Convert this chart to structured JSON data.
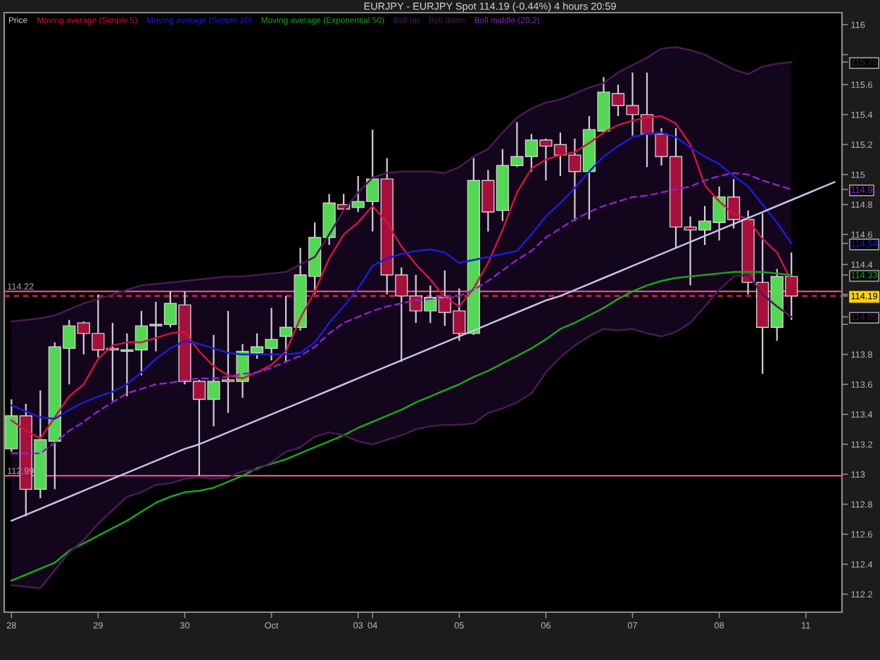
{
  "chart_data": {
    "type": "candlestick",
    "title": "EURJPY - EURJPY Spot 114.19 (-0.44%) 4 hours 20:59",
    "categories": [
      "28",
      null,
      null,
      null,
      null,
      null,
      "29",
      null,
      null,
      null,
      null,
      null,
      "30",
      null,
      null,
      null,
      null,
      null,
      "Oct",
      null,
      null,
      null,
      null,
      null,
      "03",
      "04",
      null,
      null,
      null,
      null,
      null,
      "05",
      null,
      null,
      null,
      null,
      null,
      "06",
      null,
      null,
      null,
      null,
      null,
      "07",
      null,
      null,
      null,
      null,
      null,
      "08",
      null,
      null,
      null,
      null,
      null,
      "11",
      null,
      null
    ],
    "ylim": [
      112.08,
      116.08
    ],
    "yticks": [
      112.2,
      112.4,
      112.6,
      112.8,
      113,
      113.2,
      113.4,
      113.6,
      113.8,
      {
        "value": 114,
        "label": null
      },
      114.05,
      114.19,
      {
        "value": 114.2,
        "label": null
      },
      114.33,
      114.4,
      114.54,
      114.6,
      114.8,
      114.9,
      115,
      115.2,
      115.4,
      115.6,
      115.75,
      {
        "value": 115.8,
        "label": null
      },
      116
    ],
    "legend": "top left",
    "series": [
      {
        "name": "Price",
        "color": "#d0d0d0",
        "ohlc": [
          [
            113.17,
            113.5,
            113.15,
            113.39
          ],
          [
            113.39,
            113.47,
            112.72,
            112.9
          ],
          [
            112.9,
            113.56,
            112.84,
            113.23
          ],
          [
            113.22,
            113.88,
            112.9,
            113.85
          ],
          [
            113.84,
            114.03,
            113.6,
            113.99
          ],
          [
            114.01,
            114.02,
            113.8,
            113.94
          ],
          [
            113.94,
            114.2,
            113.78,
            113.83
          ],
          [
            113.84,
            114.01,
            113.49,
            113.83
          ],
          [
            113.82,
            113.94,
            113.52,
            113.83
          ],
          [
            113.83,
            114.09,
            113.66,
            113.99
          ],
          [
            113.99,
            114.15,
            113.82,
            114.0
          ],
          [
            114.0,
            114.22,
            113.98,
            114.14
          ],
          [
            114.13,
            114.22,
            113.6,
            113.62
          ],
          [
            113.62,
            113.63,
            112.99,
            113.5
          ],
          [
            113.5,
            113.93,
            113.32,
            113.62
          ],
          [
            113.63,
            114.09,
            113.41,
            113.62
          ],
          [
            113.62,
            113.87,
            113.51,
            113.82
          ],
          [
            113.81,
            113.94,
            113.77,
            113.85
          ],
          [
            113.84,
            114.11,
            113.76,
            113.9
          ],
          [
            113.92,
            114.19,
            113.75,
            113.98
          ],
          [
            113.98,
            114.51,
            113.96,
            114.33
          ],
          [
            114.32,
            114.68,
            114.2,
            114.58
          ],
          [
            114.58,
            114.87,
            114.53,
            114.81
          ],
          [
            114.8,
            114.87,
            114.76,
            114.77
          ],
          [
            114.78,
            114.99,
            114.75,
            114.82
          ],
          [
            114.82,
            115.3,
            114.62,
            114.97
          ],
          [
            114.97,
            115.11,
            114.2,
            114.33
          ],
          [
            114.33,
            114.38,
            113.75,
            114.19
          ],
          [
            114.19,
            114.33,
            114.01,
            114.09
          ],
          [
            114.09,
            114.26,
            114.01,
            114.18
          ],
          [
            114.18,
            114.36,
            113.99,
            114.08
          ],
          [
            114.09,
            114.24,
            113.89,
            113.94
          ],
          [
            113.94,
            115.11,
            113.93,
            114.96
          ],
          [
            114.96,
            115.03,
            114.62,
            114.75
          ],
          [
            114.76,
            115.17,
            114.69,
            115.06
          ],
          [
            115.06,
            115.35,
            115.05,
            115.12
          ],
          [
            115.12,
            115.27,
            115.02,
            115.23
          ],
          [
            115.23,
            115.24,
            114.96,
            115.19
          ],
          [
            115.2,
            115.28,
            114.99,
            115.13
          ],
          [
            115.13,
            115.24,
            114.69,
            115.02
          ],
          [
            115.02,
            115.39,
            114.7,
            115.3
          ],
          [
            115.29,
            115.65,
            115.28,
            115.55
          ],
          [
            115.54,
            115.6,
            115.39,
            115.46
          ],
          [
            115.46,
            115.68,
            115.26,
            115.4
          ],
          [
            115.4,
            115.68,
            115.05,
            115.27
          ],
          [
            115.27,
            115.31,
            115.06,
            115.12
          ],
          [
            115.12,
            115.31,
            114.51,
            114.65
          ],
          [
            114.65,
            114.72,
            114.26,
            114.63
          ],
          [
            114.63,
            114.79,
            114.53,
            114.69
          ],
          [
            114.68,
            114.92,
            114.56,
            114.85
          ],
          [
            114.85,
            114.97,
            114.64,
            114.7
          ],
          [
            114.7,
            114.76,
            114.2,
            114.28
          ],
          [
            114.28,
            114.74,
            113.67,
            113.98
          ],
          [
            113.98,
            114.37,
            113.89,
            114.32
          ],
          [
            114.32,
            114.48,
            114.03,
            114.19
          ],
          null,
          null,
          null
        ],
        "colors": [
          "#52d852",
          "#a8103c",
          "#52d852",
          "#52d852",
          "#52d852",
          "#a8103c",
          "#a8103c",
          "#a8103c",
          "#52d852",
          "#52d852",
          "#52d852",
          "#52d852",
          "#a8103c",
          "#a8103c",
          "#52d852",
          "#a8103c",
          "#52d852",
          "#52d852",
          "#52d852",
          "#52d852",
          "#52d852",
          "#52d852",
          "#52d852",
          "#a8103c",
          "#52d852",
          "#52d852",
          "#a8103c",
          "#a8103c",
          "#a8103c",
          "#52d852",
          "#a8103c",
          "#a8103c",
          "#52d852",
          "#a8103c",
          "#52d852",
          "#52d852",
          "#52d852",
          "#a8103c",
          "#a8103c",
          "#a8103c",
          "#52d852",
          "#52d852",
          "#a8103c",
          "#a8103c",
          "#a8103c",
          "#a8103c",
          "#a8103c",
          "#a8103c",
          "#52d852",
          "#52d852",
          "#a8103c",
          "#a8103c",
          "#a8103c",
          "#52d852",
          "#a8103c",
          null,
          null,
          null
        ]
      },
      {
        "name": "Moving average (Simple 5)",
        "type": "line",
        "color": "#d0143e",
        "values": [
          113.36,
          113.29,
          113.24,
          113.38,
          113.52,
          113.6,
          113.77,
          113.86,
          113.88,
          113.88,
          113.91,
          113.94,
          113.95,
          113.82,
          113.72,
          113.66,
          113.64,
          113.68,
          113.73,
          113.82,
          114.04,
          114.22,
          114.44,
          114.6,
          114.68,
          114.79,
          114.68,
          114.52,
          114.4,
          114.3,
          114.18,
          114.12,
          114.24,
          114.41,
          114.63,
          114.88,
          115.04,
          115.1,
          115.13,
          115.15,
          115.21,
          115.28,
          115.33,
          115.36,
          115.38,
          115.39,
          115.34,
          115.2,
          114.93,
          114.82,
          114.74,
          114.7,
          114.57,
          114.48,
          114.29,
          null,
          null,
          null
        ]
      },
      {
        "name": "Moving average (Simple 10)",
        "type": "line",
        "color": "#1c1cd8",
        "values": [
          113.46,
          113.42,
          113.38,
          113.37,
          113.43,
          113.48,
          113.52,
          113.55,
          113.6,
          113.68,
          113.77,
          113.84,
          113.89,
          113.87,
          113.84,
          113.81,
          113.8,
          113.8,
          113.8,
          113.8,
          113.81,
          113.88,
          114.01,
          114.12,
          114.24,
          114.39,
          114.44,
          114.47,
          114.49,
          114.5,
          114.48,
          114.41,
          114.43,
          114.45,
          114.47,
          114.49,
          114.6,
          114.72,
          114.81,
          114.91,
          115.02,
          115.12,
          115.19,
          115.25,
          115.27,
          115.28,
          115.25,
          115.18,
          115.12,
          115.07,
          114.99,
          114.92,
          114.8,
          114.68,
          114.54,
          null,
          null,
          null
        ]
      },
      {
        "name": "Moving average (Exponential 50)",
        "type": "line",
        "color": "#18a818",
        "values": [
          112.29,
          112.33,
          112.37,
          112.41,
          112.49,
          112.54,
          112.59,
          112.64,
          112.69,
          112.75,
          112.81,
          112.85,
          112.88,
          112.89,
          112.91,
          112.95,
          112.99,
          113.04,
          113.07,
          113.1,
          113.14,
          113.18,
          113.22,
          113.26,
          113.31,
          113.35,
          113.39,
          113.43,
          113.48,
          113.52,
          113.56,
          113.6,
          113.65,
          113.69,
          113.74,
          113.79,
          113.84,
          113.9,
          113.97,
          114.01,
          114.06,
          114.11,
          114.17,
          114.22,
          114.26,
          114.29,
          114.31,
          114.32,
          114.33,
          114.34,
          114.35,
          114.35,
          114.35,
          114.34,
          114.33,
          null,
          null,
          null
        ]
      },
      {
        "name": "Boll up",
        "type": "line",
        "color": "#4a1a55",
        "values": [
          114.02,
          114.03,
          114.04,
          114.06,
          114.1,
          114.14,
          114.17,
          114.2,
          114.23,
          114.26,
          114.27,
          114.28,
          114.29,
          114.3,
          114.31,
          114.32,
          114.32,
          114.33,
          114.34,
          114.35,
          114.4,
          114.45,
          114.6,
          114.76,
          114.88,
          114.98,
          115.01,
          115.02,
          115.02,
          115.02,
          115.01,
          115.05,
          115.12,
          115.17,
          115.28,
          115.38,
          115.44,
          115.48,
          115.5,
          115.54,
          115.58,
          115.61,
          115.68,
          115.73,
          115.78,
          115.84,
          115.85,
          115.83,
          115.8,
          115.75,
          115.7,
          115.67,
          115.72,
          115.74,
          115.75,
          null,
          null,
          null
        ]
      },
      {
        "name": "Boll down",
        "type": "line",
        "color": "#4a1a55",
        "values": [
          112.26,
          112.25,
          112.24,
          112.36,
          112.48,
          112.56,
          112.67,
          112.76,
          112.85,
          112.88,
          112.93,
          112.94,
          112.97,
          112.98,
          112.97,
          112.98,
          113.02,
          113.03,
          113.08,
          113.15,
          113.18,
          113.25,
          113.28,
          113.26,
          113.22,
          113.2,
          113.23,
          113.26,
          113.3,
          113.32,
          113.33,
          113.33,
          113.34,
          113.41,
          113.44,
          113.48,
          113.54,
          113.68,
          113.78,
          113.86,
          113.92,
          113.97,
          113.96,
          113.97,
          113.94,
          113.92,
          113.95,
          114.01,
          114.12,
          114.23,
          114.32,
          114.33,
          114.2,
          114.12,
          114.05,
          null,
          null,
          null
        ]
      },
      {
        "name": "Boll middle (20,2)",
        "type": "line",
        "color": "#8a22c8",
        "line_style": "dashed",
        "values": [
          113.14,
          113.14,
          113.14,
          113.21,
          113.29,
          113.35,
          113.42,
          113.48,
          113.54,
          113.57,
          113.6,
          113.61,
          113.63,
          113.64,
          113.64,
          113.65,
          113.67,
          113.68,
          113.71,
          113.75,
          113.79,
          113.85,
          113.94,
          114.01,
          114.05,
          114.09,
          114.12,
          114.14,
          114.16,
          114.17,
          114.17,
          114.19,
          114.23,
          114.29,
          114.36,
          114.43,
          114.49,
          114.58,
          114.64,
          114.7,
          114.75,
          114.79,
          114.82,
          114.85,
          114.86,
          114.88,
          114.9,
          114.92,
          114.96,
          114.99,
          115.01,
          115.0,
          114.96,
          114.93,
          114.9,
          null,
          null,
          null
        ],
        "upper": [
          114.02,
          114.03,
          114.04,
          114.06,
          114.1,
          114.14,
          114.17,
          114.2,
          114.23,
          114.26,
          114.27,
          114.28,
          114.29,
          114.3,
          114.31,
          114.32,
          114.32,
          114.33,
          114.34,
          114.35,
          114.4,
          114.45,
          114.6,
          114.76,
          114.88,
          114.98,
          115.01,
          115.02,
          115.02,
          115.02,
          115.01,
          115.05,
          115.12,
          115.17,
          115.28,
          115.38,
          115.44,
          115.48,
          115.5,
          115.54,
          115.58,
          115.61,
          115.68,
          115.73,
          115.78,
          115.84,
          115.85,
          115.83,
          115.8,
          115.75,
          115.7,
          115.67,
          115.72,
          115.74,
          115.75,
          null,
          null,
          null
        ],
        "lower": [
          112.26,
          112.25,
          112.24,
          112.36,
          112.48,
          112.56,
          112.67,
          112.76,
          112.85,
          112.88,
          112.93,
          112.94,
          112.97,
          112.98,
          112.97,
          112.98,
          113.02,
          113.03,
          113.08,
          113.15,
          113.18,
          113.25,
          113.28,
          113.26,
          113.22,
          113.2,
          113.23,
          113.26,
          113.3,
          113.32,
          113.33,
          113.33,
          113.34,
          113.41,
          113.44,
          113.48,
          113.54,
          113.68,
          113.78,
          113.86,
          113.92,
          113.97,
          113.96,
          113.97,
          113.94,
          113.92,
          113.95,
          114.01,
          114.12,
          114.23,
          114.32,
          114.33,
          114.2,
          114.12,
          114.05,
          null,
          null,
          null
        ]
      },
      {
        "type": "line",
        "color": "#c4c4e4",
        "values": [
          112.69,
          112.73,
          112.77,
          112.81,
          112.85,
          112.89,
          112.93,
          112.97,
          113.01,
          113.05,
          113.09,
          113.13,
          113.17,
          113.2,
          113.24,
          113.28,
          113.32,
          113.36,
          113.4,
          113.44,
          113.48,
          113.52,
          113.56,
          113.6,
          113.64,
          113.68,
          113.72,
          113.76,
          113.8,
          113.84,
          113.88,
          113.92,
          113.96,
          114.0,
          114.04,
          114.08,
          114.12,
          114.16,
          114.19,
          114.23,
          114.27,
          114.31,
          114.35,
          114.39,
          114.43,
          114.47,
          114.51,
          114.55,
          114.59,
          114.63,
          114.67,
          114.71,
          114.75,
          114.79,
          114.83,
          114.87,
          114.91,
          114.95
        ]
      }
    ],
    "ref_lines": [
      {
        "axis": "y",
        "value": 114.22,
        "label": "114.22",
        "color": "#e0508a"
      },
      {
        "axis": "y",
        "value": 112.99,
        "label": "112.99",
        "color": "#e0508a"
      },
      {
        "axis": "y",
        "value": 114.19,
        "color": "#e8283c",
        "line_style": "dashed"
      }
    ]
  }
}
